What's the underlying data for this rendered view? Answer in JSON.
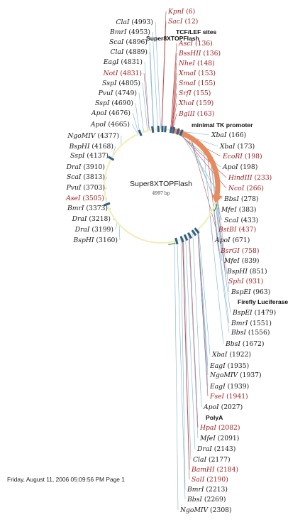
{
  "map": {
    "name": "Super8XTOPFlash",
    "length_label": "4997 bp",
    "top_label": "Super8XTOPFlash",
    "total_bp": 4997
  },
  "footer": "Friday, August 11, 2006 05:09:56 PM Page 1",
  "colors": {
    "unique_enzyme": "#9b1c1c",
    "enzyme": "#1a1a1a",
    "backbone": "#f3eebb",
    "promoter_arrow": "#e88a5c",
    "feature_block": "#2f5f8a",
    "leader_line": "#7fb2d6",
    "leader_line_unique": "#c0504d"
  },
  "features": [
    {
      "label": "TCF/LEF sites",
      "start": 4997,
      "end": 160
    },
    {
      "label": "minimal TK promoter",
      "start": 170,
      "end": 260
    },
    {
      "label": "Firefly Luciferase",
      "start": 280,
      "end": 1960
    },
    {
      "label": "PolyA",
      "start": 1990,
      "end": 2060
    }
  ],
  "left_labels": [
    {
      "name": "ClaI",
      "pos": "4993",
      "unique": false
    },
    {
      "name": "BmrI",
      "pos": "4953",
      "unique": false
    },
    {
      "name": "ScaI",
      "pos": "4896",
      "unique": false
    },
    {
      "name": "ClaI",
      "pos": "4889",
      "unique": false
    },
    {
      "name": "EagI",
      "pos": "4831",
      "unique": false
    },
    {
      "name": "NotI",
      "pos": "4831",
      "unique": true
    },
    {
      "name": "SspI",
      "pos": "4805",
      "unique": false
    },
    {
      "name": "PvuI",
      "pos": "4749",
      "unique": false
    },
    {
      "name": "SspI",
      "pos": "4690",
      "unique": false
    },
    {
      "name": "ApoI",
      "pos": "4676",
      "unique": false
    },
    {
      "name": "ApoI",
      "pos": "4665",
      "unique": false
    },
    {
      "name": "NgoMIV",
      "pos": "4377",
      "unique": false
    },
    {
      "name": "BspHI",
      "pos": "4168",
      "unique": false
    },
    {
      "name": "SspI",
      "pos": "4137",
      "unique": false
    },
    {
      "name": "DraI",
      "pos": "3910",
      "unique": false
    },
    {
      "name": "ScaI",
      "pos": "3813",
      "unique": false
    },
    {
      "name": "PvuI",
      "pos": "3703",
      "unique": false
    },
    {
      "name": "AseI",
      "pos": "3505",
      "unique": true
    },
    {
      "name": "BmrI",
      "pos": "3373",
      "unique": false
    },
    {
      "name": "DraI",
      "pos": "3218",
      "unique": false
    },
    {
      "name": "DraI",
      "pos": "3199",
      "unique": false
    },
    {
      "name": "BspHI",
      "pos": "3160",
      "unique": false
    }
  ],
  "top_right_labels": [
    {
      "name": "KpnI",
      "pos": "6",
      "unique": true
    },
    {
      "name": "SacI",
      "pos": "12",
      "unique": true
    },
    {
      "name": "AscI",
      "pos": "136",
      "unique": true
    },
    {
      "name": "BssHII",
      "pos": "136",
      "unique": true
    },
    {
      "name": "NheI",
      "pos": "148",
      "unique": true
    },
    {
      "name": "XmaI",
      "pos": "153",
      "unique": true
    },
    {
      "name": "SmaI",
      "pos": "155",
      "unique": true
    },
    {
      "name": "SrfI",
      "pos": "155",
      "unique": true
    },
    {
      "name": "XhoI",
      "pos": "159",
      "unique": true
    },
    {
      "name": "BglII",
      "pos": "163",
      "unique": true
    }
  ],
  "right_labels": [
    {
      "name": "XbaI",
      "pos": "166",
      "unique": false
    },
    {
      "name": "XbaI",
      "pos": "173",
      "unique": false
    },
    {
      "name": "EcoRI",
      "pos": "198",
      "unique": true
    },
    {
      "name": "ApoI",
      "pos": "198",
      "unique": false
    },
    {
      "name": "HindIII",
      "pos": "233",
      "unique": true
    },
    {
      "name": "NcoI",
      "pos": "266",
      "unique": true
    },
    {
      "name": "BbsI",
      "pos": "278",
      "unique": false
    },
    {
      "name": "MfeI",
      "pos": "383",
      "unique": false
    },
    {
      "name": "ScaI",
      "pos": "433",
      "unique": false
    },
    {
      "name": "BstBI",
      "pos": "437",
      "unique": true
    },
    {
      "name": "ApoI",
      "pos": "671",
      "unique": false
    },
    {
      "name": "BsrGI",
      "pos": "758",
      "unique": true
    },
    {
      "name": "MfeI",
      "pos": "839",
      "unique": false
    },
    {
      "name": "BspHI",
      "pos": "851",
      "unique": false
    },
    {
      "name": "SphI",
      "pos": "931",
      "unique": true
    },
    {
      "name": "BspEI",
      "pos": "963",
      "unique": false
    }
  ],
  "bottom_labels": [
    {
      "name": "BspEI",
      "pos": "1479",
      "unique": false
    },
    {
      "name": "BmrI",
      "pos": "1551",
      "unique": false
    },
    {
      "name": "BbsI",
      "pos": "1556",
      "unique": false
    },
    {
      "name": "BbsI",
      "pos": "1672",
      "unique": false
    },
    {
      "name": "XbaI",
      "pos": "1922",
      "unique": false
    },
    {
      "name": "EagI",
      "pos": "1935",
      "unique": false
    },
    {
      "name": "NgoMIV",
      "pos": "1937",
      "unique": false
    },
    {
      "name": "EagI",
      "pos": "1939",
      "unique": false
    },
    {
      "name": "FseI",
      "pos": "1941",
      "unique": true
    },
    {
      "name": "ApoI",
      "pos": "2027",
      "unique": false
    },
    {
      "name": "HpaI",
      "pos": "2082",
      "unique": true
    },
    {
      "name": "MfeI",
      "pos": "2091",
      "unique": false
    },
    {
      "name": "DraI",
      "pos": "2143",
      "unique": false
    },
    {
      "name": "ClaI",
      "pos": "2177",
      "unique": false
    },
    {
      "name": "BamHI",
      "pos": "2184",
      "unique": true
    },
    {
      "name": "SalI",
      "pos": "2190",
      "unique": true
    },
    {
      "name": "BmrI",
      "pos": "2213",
      "unique": false
    },
    {
      "name": "BbsI",
      "pos": "2269",
      "unique": false
    },
    {
      "name": "NgoMIV",
      "pos": "2308",
      "unique": false
    }
  ]
}
